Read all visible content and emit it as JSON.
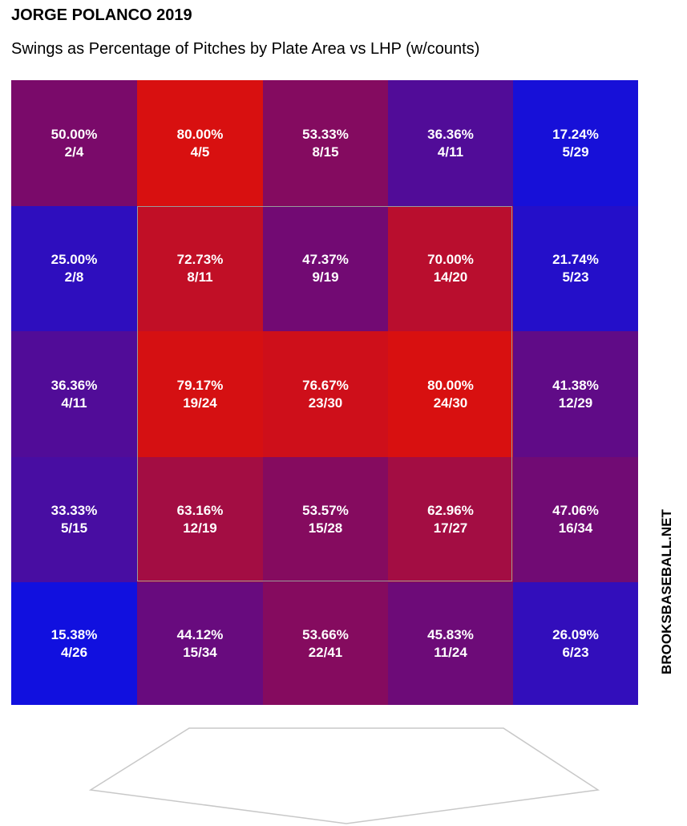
{
  "chart_data": {
    "type": "heatmap",
    "title": "JORGE POLANCO 2019",
    "subtitle": "Swings as Percentage of Pitches by Plate Area vs LHP (w/counts)",
    "rows": 5,
    "cols": 5,
    "strike_zone": {
      "row_start": 1,
      "row_end": 3,
      "col_start": 1,
      "col_end": 3
    },
    "color_scale": {
      "low": "#1010e0",
      "mid": "#7a0a6a",
      "high": "#d81010"
    },
    "cells": [
      [
        {
          "pct": "50.00%",
          "count": "2/4",
          "value": 50.0
        },
        {
          "pct": "80.00%",
          "count": "4/5",
          "value": 80.0
        },
        {
          "pct": "53.33%",
          "count": "8/15",
          "value": 53.33
        },
        {
          "pct": "36.36%",
          "count": "4/11",
          "value": 36.36
        },
        {
          "pct": "17.24%",
          "count": "5/29",
          "value": 17.24
        }
      ],
      [
        {
          "pct": "25.00%",
          "count": "2/8",
          "value": 25.0
        },
        {
          "pct": "72.73%",
          "count": "8/11",
          "value": 72.73
        },
        {
          "pct": "47.37%",
          "count": "9/19",
          "value": 47.37
        },
        {
          "pct": "70.00%",
          "count": "14/20",
          "value": 70.0
        },
        {
          "pct": "21.74%",
          "count": "5/23",
          "value": 21.74
        }
      ],
      [
        {
          "pct": "36.36%",
          "count": "4/11",
          "value": 36.36
        },
        {
          "pct": "79.17%",
          "count": "19/24",
          "value": 79.17
        },
        {
          "pct": "76.67%",
          "count": "23/30",
          "value": 76.67
        },
        {
          "pct": "80.00%",
          "count": "24/30",
          "value": 80.0
        },
        {
          "pct": "41.38%",
          "count": "12/29",
          "value": 41.38
        }
      ],
      [
        {
          "pct": "33.33%",
          "count": "5/15",
          "value": 33.33
        },
        {
          "pct": "63.16%",
          "count": "12/19",
          "value": 63.16
        },
        {
          "pct": "53.57%",
          "count": "15/28",
          "value": 53.57
        },
        {
          "pct": "62.96%",
          "count": "17/27",
          "value": 62.96
        },
        {
          "pct": "47.06%",
          "count": "16/34",
          "value": 47.06
        }
      ],
      [
        {
          "pct": "15.38%",
          "count": "4/26",
          "value": 15.38
        },
        {
          "pct": "44.12%",
          "count": "15/34",
          "value": 44.12
        },
        {
          "pct": "53.66%",
          "count": "22/41",
          "value": 53.66
        },
        {
          "pct": "45.83%",
          "count": "11/24",
          "value": 45.83
        },
        {
          "pct": "26.09%",
          "count": "6/23",
          "value": 26.09
        }
      ]
    ]
  },
  "watermark": "BROOKSBASEBALL.NET"
}
